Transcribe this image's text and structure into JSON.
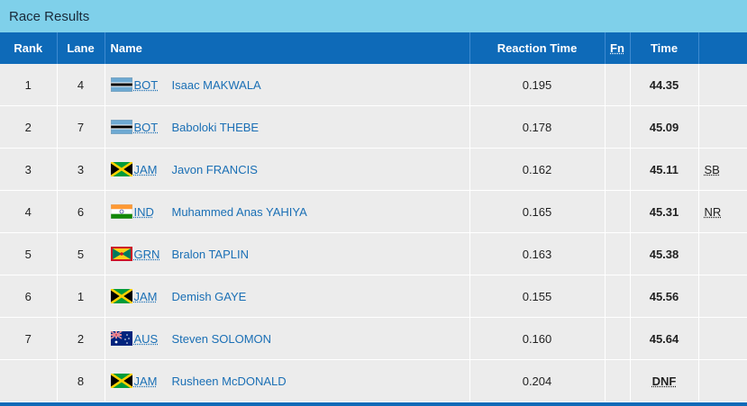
{
  "title": "Race Results",
  "columns": {
    "rank": "Rank",
    "lane": "Lane",
    "name": "Name",
    "reaction": "Reaction Time",
    "fn": "Fn",
    "time": "Time"
  },
  "rows": [
    {
      "rank": "1",
      "lane": "4",
      "country": "BOT",
      "flag": "botswana-flag",
      "name": "Isaac MAKWALA",
      "reaction": "0.195",
      "time": "44.35",
      "note": ""
    },
    {
      "rank": "2",
      "lane": "7",
      "country": "BOT",
      "flag": "botswana-flag",
      "name": "Baboloki THEBE",
      "reaction": "0.178",
      "time": "45.09",
      "note": ""
    },
    {
      "rank": "3",
      "lane": "3",
      "country": "JAM",
      "flag": "jamaica-flag",
      "name": "Javon FRANCIS",
      "reaction": "0.162",
      "time": "45.11",
      "note": "SB"
    },
    {
      "rank": "4",
      "lane": "6",
      "country": "IND",
      "flag": "india-flag",
      "name": "Muhammed Anas YAHIYA",
      "reaction": "0.165",
      "time": "45.31",
      "note": "NR"
    },
    {
      "rank": "5",
      "lane": "5",
      "country": "GRN",
      "flag": "grenada-flag",
      "name": "Bralon TAPLIN",
      "reaction": "0.163",
      "time": "45.38",
      "note": ""
    },
    {
      "rank": "6",
      "lane": "1",
      "country": "JAM",
      "flag": "jamaica-flag",
      "name": "Demish GAYE",
      "reaction": "0.155",
      "time": "45.56",
      "note": ""
    },
    {
      "rank": "7",
      "lane": "2",
      "country": "AUS",
      "flag": "australia-flag",
      "name": "Steven SOLOMON",
      "reaction": "0.160",
      "time": "45.64",
      "note": ""
    },
    {
      "rank": "",
      "lane": "8",
      "country": "JAM",
      "flag": "jamaica-flag",
      "name": "Rusheen McDONALD",
      "reaction": "0.204",
      "time": "DNF",
      "note": ""
    }
  ],
  "colors": {
    "titlebar": "#7fd0ea",
    "header": "#0e6ab8",
    "row": "#ececec",
    "link": "#1a6fb5"
  }
}
